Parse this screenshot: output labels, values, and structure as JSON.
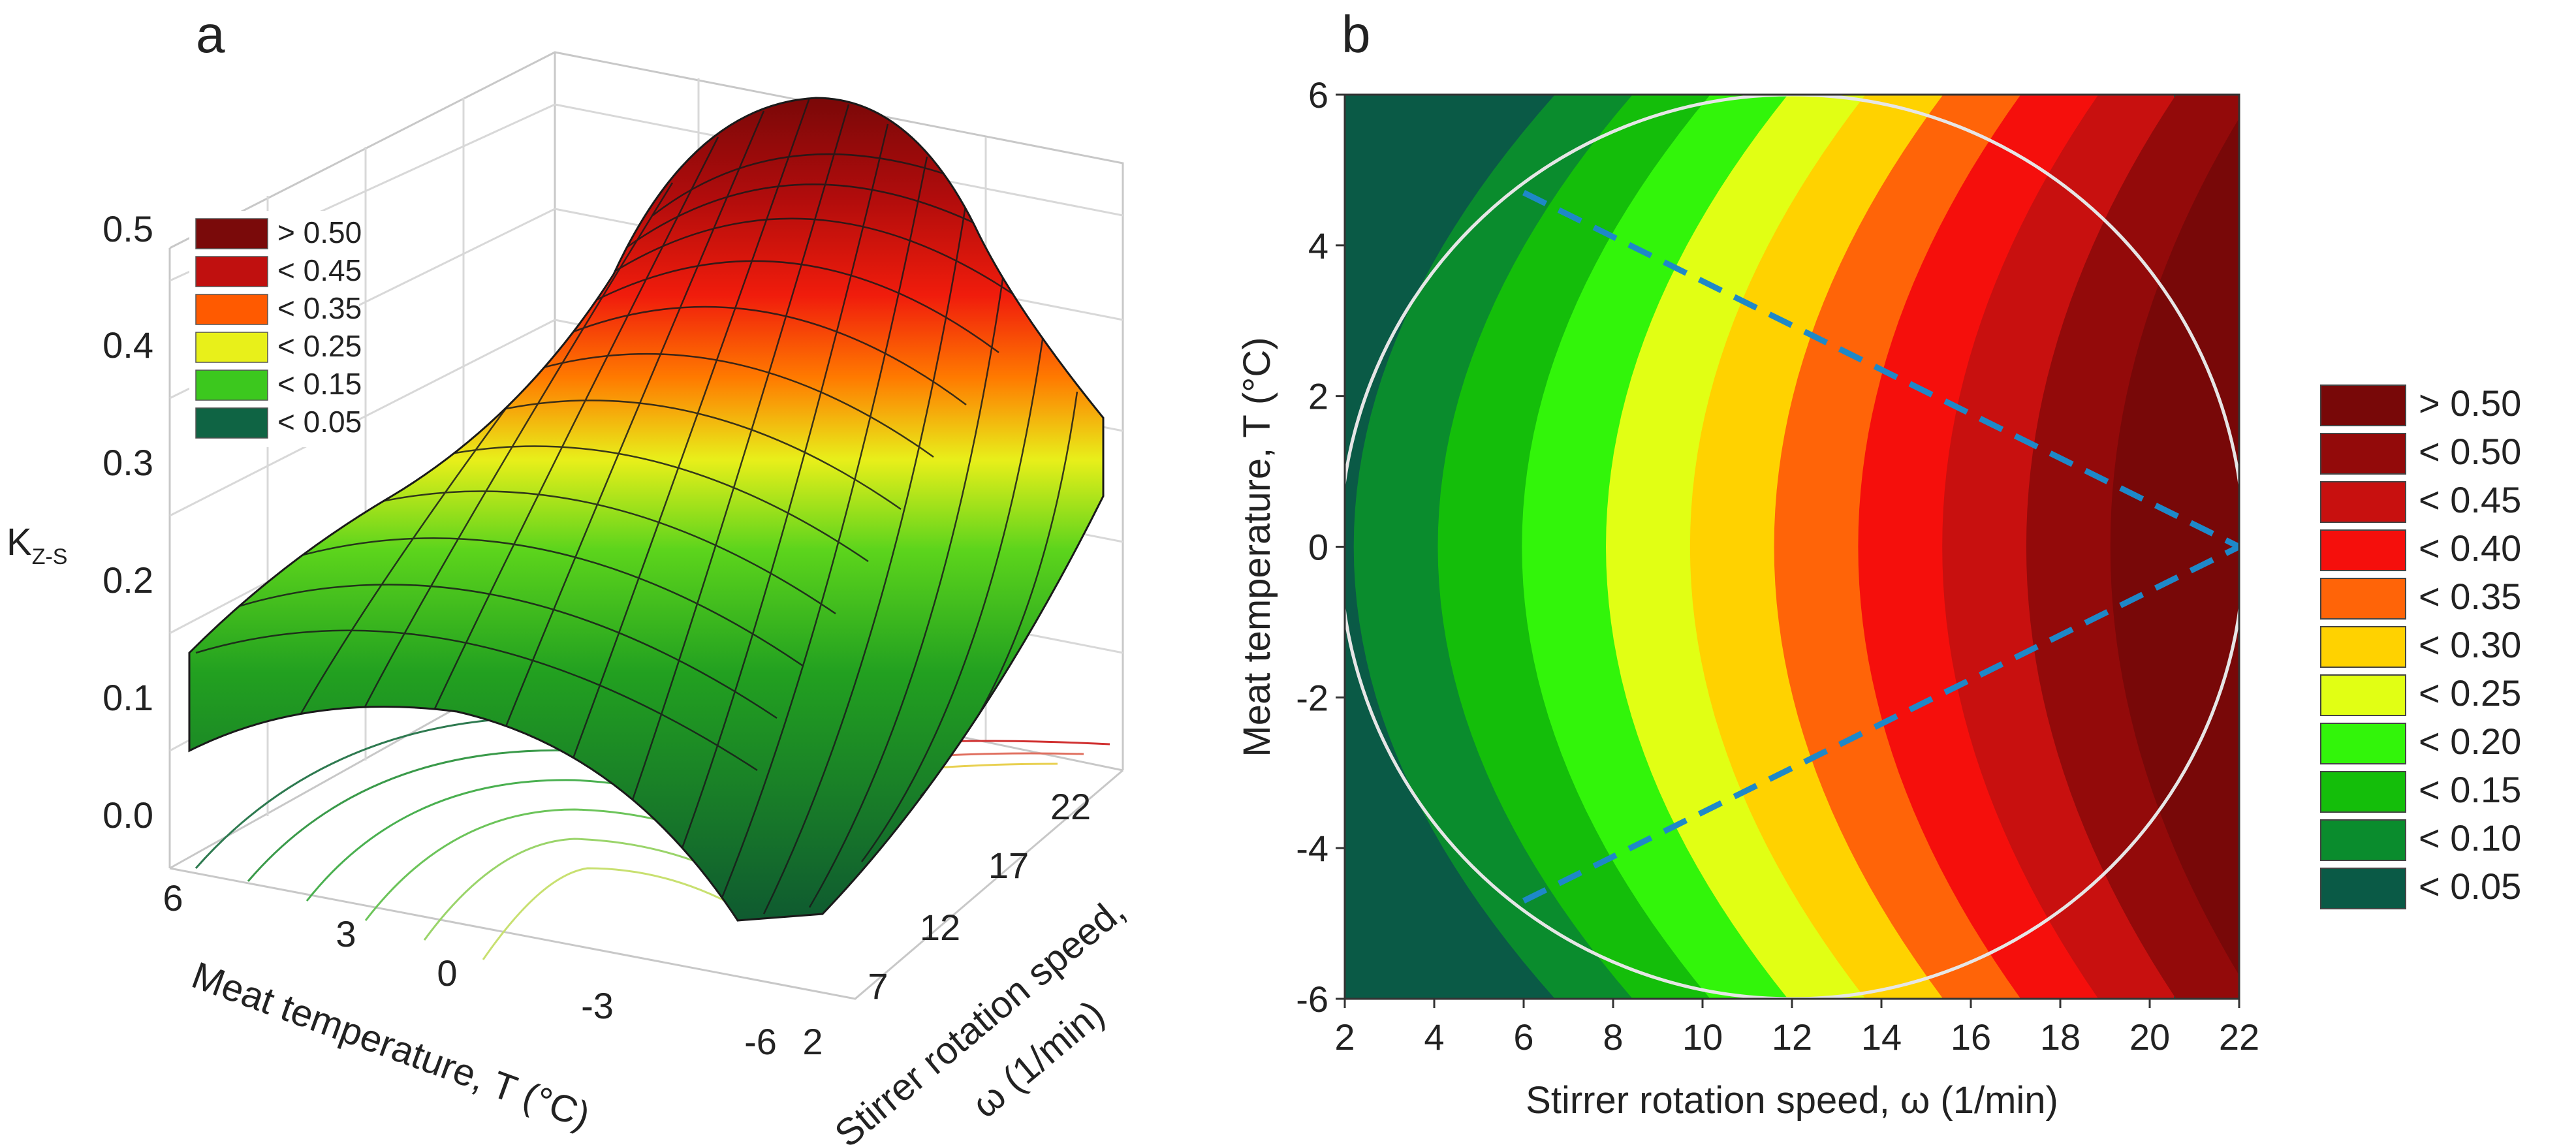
{
  "chart_data": [
    {
      "panel": "a",
      "type": "surface-3d",
      "zlabel": "K",
      "zlabel_sub": "Z-S",
      "xlabel": "Stirrer rotation speed,",
      "xlabel2": "ω (1/min)",
      "ylabel": "Meat temperature, T (°C)",
      "z_ticks": [
        "0.0",
        "0.1",
        "0.2",
        "0.3",
        "0.4",
        "0.5"
      ],
      "omega_ticks": [
        "2",
        "7",
        "12",
        "17",
        "22"
      ],
      "temp_ticks": [
        "6",
        "3",
        "0",
        "-3",
        "-6"
      ],
      "omega_range": [
        2,
        22
      ],
      "temp_range": [
        -6,
        6
      ],
      "z_range": [
        0,
        0.5
      ],
      "legend": [
        {
          "label": "> 0.50",
          "color": "#7a0a0a"
        },
        {
          "label": "< 0.45",
          "color": "#c0100f"
        },
        {
          "label": "< 0.35",
          "color": "#ff5a00"
        },
        {
          "label": "< 0.25",
          "color": "#e8f01a"
        },
        {
          "label": "< 0.15",
          "color": "#3cc81e"
        },
        {
          "label": "< 0.05",
          "color": "#0f6444"
        }
      ]
    },
    {
      "panel": "b",
      "type": "contour",
      "xlabel": "Stirrer rotation speed, ω (1/min)",
      "ylabel": "Meat temperature, T (°C)",
      "x_ticks": [
        "2",
        "4",
        "6",
        "8",
        "10",
        "12",
        "14",
        "16",
        "18",
        "20",
        "22"
      ],
      "y_ticks": [
        "6",
        "4",
        "2",
        "0",
        "-2",
        "-4",
        "-6"
      ],
      "xlim": [
        2,
        22
      ],
      "ylim": [
        -6,
        6
      ],
      "circle": {
        "center_omega": 12,
        "center_temp": 0,
        "radius_temp": 6
      },
      "dashed_lines": [
        {
          "from": [
            6,
            4.7
          ],
          "to": [
            22,
            0
          ]
        },
        {
          "from": [
            6,
            -4.7
          ],
          "to": [
            22,
            0
          ]
        }
      ],
      "legend": [
        {
          "label": "> 0.50",
          "color": "#780808"
        },
        {
          "label": "< 0.50",
          "color": "#930a0a"
        },
        {
          "label": "< 0.45",
          "color": "#c8100f"
        },
        {
          "label": "< 0.40",
          "color": "#f50f0c"
        },
        {
          "label": "< 0.35",
          "color": "#ff6408"
        },
        {
          "label": "< 0.30",
          "color": "#ffd200"
        },
        {
          "label": "< 0.25",
          "color": "#e1ff14"
        },
        {
          "label": "< 0.20",
          "color": "#32f50a"
        },
        {
          "label": "< 0.15",
          "color": "#14be0a"
        },
        {
          "label": "< 0.10",
          "color": "#0a8c2d"
        },
        {
          "label": "< 0.05",
          "color": "#0a5a46"
        }
      ]
    }
  ]
}
